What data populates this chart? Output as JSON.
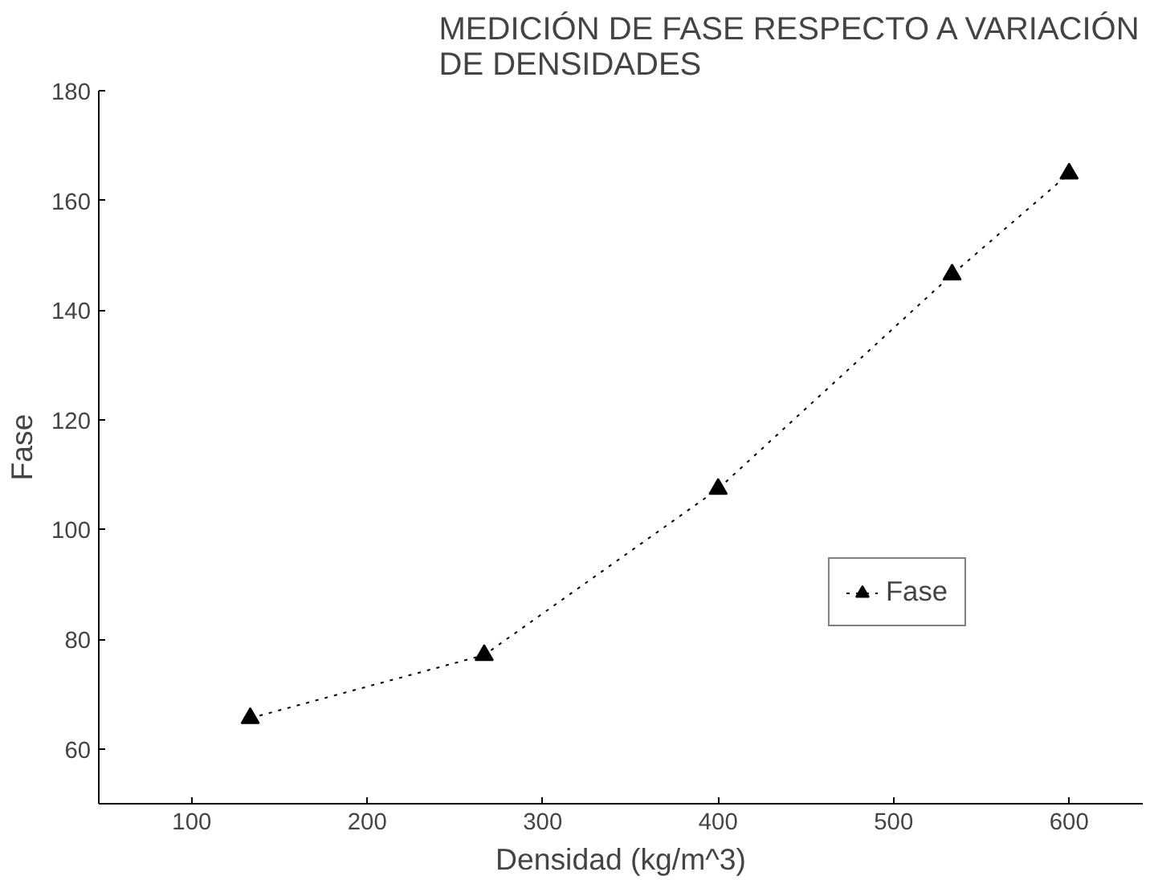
{
  "chart_data": {
    "type": "line",
    "title": "MEDICIÓN DE FASE RESPECTO A VARIACIÓN\nDE DENSIDADES",
    "xlabel": "Densidad (kg/m^3)",
    "ylabel": "Fase",
    "x": [
      133.33,
      266.67,
      400,
      533.33,
      600
    ],
    "series": [
      {
        "name": "Fase",
        "color": "#000000",
        "values": [
          65.6,
          77.1,
          107.4,
          146.5,
          164.9
        ]
      }
    ],
    "xlim": [
      47,
      642
    ],
    "ylim": [
      50,
      180
    ],
    "xticks": [
      100,
      200,
      300,
      400,
      500,
      600
    ],
    "yticks": [
      60,
      80,
      100,
      120,
      140,
      160,
      180
    ],
    "grid": false,
    "legend": "bottom right",
    "marker": "triangle",
    "line_style": "dotted"
  }
}
